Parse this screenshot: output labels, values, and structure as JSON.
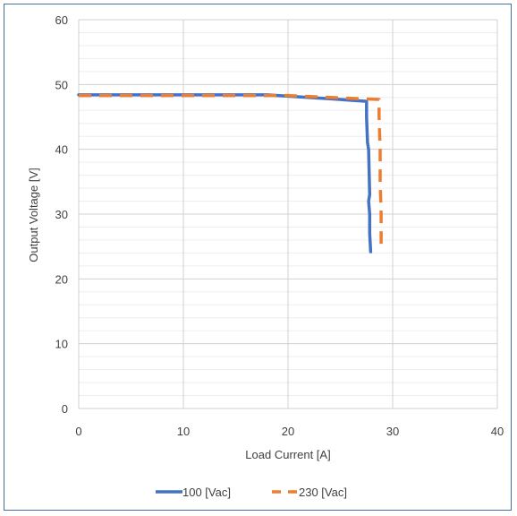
{
  "chart_data": {
    "type": "line",
    "title": "",
    "xlabel": "Load Current [A]",
    "ylabel": "Output Voltage [V]",
    "xlim": [
      0,
      40
    ],
    "ylim": [
      0,
      60
    ],
    "x_ticks": [
      "0",
      "10",
      "20",
      "30",
      "40"
    ],
    "y_ticks": [
      "0",
      "10",
      "20",
      "30",
      "40",
      "50",
      "60"
    ],
    "grid": true,
    "minor_grid": true,
    "legend_position": "bottom",
    "series": [
      {
        "name": "100 [Vac]",
        "color": "#4472c4",
        "style": "solid",
        "points": [
          [
            0,
            48.4
          ],
          [
            10,
            48.4
          ],
          [
            18,
            48.4
          ],
          [
            20,
            48.2
          ],
          [
            24,
            47.8
          ],
          [
            27.5,
            47.4
          ],
          [
            27.5,
            45
          ],
          [
            27.6,
            41
          ],
          [
            27.7,
            40
          ],
          [
            27.8,
            33
          ],
          [
            27.7,
            32
          ],
          [
            27.8,
            30
          ],
          [
            27.8,
            27
          ],
          [
            27.9,
            24.2
          ]
        ]
      },
      {
        "name": "230 [Vac]",
        "color": "#ed7d31",
        "style": "dashed",
        "points": [
          [
            0,
            48.3
          ],
          [
            10,
            48.3
          ],
          [
            18,
            48.3
          ],
          [
            20,
            48.3
          ],
          [
            24,
            48.0
          ],
          [
            28.7,
            47.7
          ],
          [
            28.7,
            45
          ],
          [
            28.8,
            40
          ],
          [
            28.8,
            35
          ],
          [
            28.9,
            30
          ],
          [
            28.9,
            24.2
          ]
        ]
      }
    ]
  }
}
